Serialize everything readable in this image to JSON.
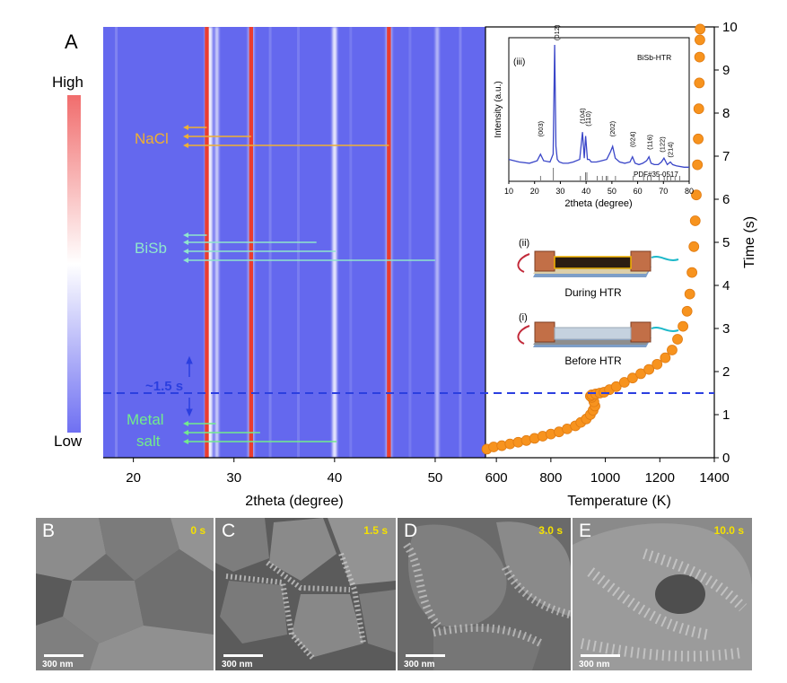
{
  "panel_a": {
    "letter": "A",
    "colorbar": {
      "high_label": "High",
      "low_label": "Low"
    },
    "heatmap": {
      "xlabel": "2theta (degree)",
      "xticks": [
        "20",
        "30",
        "40",
        "50"
      ],
      "xlim": [
        17,
        55
      ],
      "phases": [
        {
          "label": "NaCl",
          "color": "#f0b030"
        },
        {
          "label": "BiSb",
          "color": "#8fe6cc"
        },
        {
          "label": "Metal",
          "color": "#72ec8c"
        },
        {
          "label": "salt",
          "color": "#72ec8c"
        }
      ],
      "threshold_label": "~1.5 s",
      "threshold_color": "#2b3fe0"
    },
    "temperature_plot": {
      "xlabel": "Temperature (K)",
      "ylabel": "Time (s)",
      "xticks": [
        "600",
        "800",
        "1000",
        "1200",
        "1400"
      ],
      "yticks": [
        "0",
        "1",
        "2",
        "3",
        "4",
        "5",
        "6",
        "7",
        "8",
        "9",
        "10"
      ],
      "marker_color": "#f7931e"
    },
    "schematics": [
      {
        "roman": "(ii)",
        "caption": "During HTR"
      },
      {
        "roman": "(i)",
        "caption": "Before HTR"
      }
    ],
    "inset": {
      "roman": "(iii)",
      "sample_label": "BiSb-HTR",
      "reference_label": "PDF#35-0517",
      "xlabel": "2theta (degree)",
      "ylabel": "Intensity (a.u.)",
      "xticks": [
        "10",
        "20",
        "30",
        "40",
        "50",
        "60",
        "70",
        "80"
      ],
      "peak_labels": [
        "(003)",
        "(012)",
        "(104)",
        "(110)",
        "(202)",
        "(024)",
        "(116)",
        "(122)",
        "(214)"
      ],
      "line_color": "#3a46c8"
    }
  },
  "chart_data": [
    {
      "type": "heatmap",
      "title": "",
      "xlabel": "2theta (degree)",
      "ylabel": "Time (s)",
      "xlim": [
        17,
        55
      ],
      "ylim": [
        0,
        10
      ],
      "colorbar": [
        "Low",
        "High"
      ],
      "persistent_peaks_2theta": [
        27.3,
        31.7,
        45.4
      ],
      "phase_arrows": [
        {
          "phase": "NaCl",
          "peaks_2theta": [
            27.3,
            31.7,
            45.4
          ]
        },
        {
          "phase": "BiSb",
          "peaks_2theta": [
            27.3,
            38.2,
            40.1,
            50
          ]
        },
        {
          "phase": "Metal salt",
          "peaks_2theta": [
            28.2,
            32.6,
            40.2
          ]
        }
      ],
      "annotation": {
        "text": "~1.5 s",
        "y": 1.5
      }
    },
    {
      "type": "scatter",
      "title": "",
      "xlabel": "Temperature (K)",
      "ylabel": "Time (s)",
      "xlim": [
        560,
        1400
      ],
      "ylim": [
        0,
        10
      ],
      "x": [
        565,
        590,
        620,
        650,
        680,
        710,
        740,
        770,
        800,
        830,
        860,
        890,
        910,
        930,
        945,
        955,
        962,
        958,
        950,
        945,
        950,
        965,
        980,
        995,
        1015,
        1040,
        1070,
        1100,
        1130,
        1160,
        1190,
        1220,
        1245,
        1265,
        1285,
        1300,
        1310,
        1318,
        1325,
        1330,
        1334,
        1338,
        1341,
        1343,
        1345,
        1346,
        1347,
        1348
      ],
      "y": [
        0.2,
        0.25,
        0.28,
        0.32,
        0.36,
        0.4,
        0.45,
        0.5,
        0.55,
        0.6,
        0.67,
        0.74,
        0.82,
        0.9,
        1.0,
        1.1,
        1.2,
        1.3,
        1.4,
        1.43,
        1.46,
        1.48,
        1.5,
        1.52,
        1.58,
        1.65,
        1.75,
        1.85,
        1.95,
        2.05,
        2.17,
        2.32,
        2.5,
        2.75,
        3.05,
        3.4,
        3.8,
        4.3,
        4.9,
        5.5,
        6.1,
        6.8,
        7.4,
        8.1,
        8.7,
        9.3,
        9.7,
        9.95
      ]
    },
    {
      "type": "line",
      "title": "",
      "xlabel": "2theta (degree)",
      "ylabel": "Intensity (a.u.)",
      "xlim": [
        10,
        80
      ],
      "series": [
        {
          "x": [
            10,
            14,
            18,
            21,
            22.3,
            23.5,
            26,
            27.2,
            27.8,
            28.3,
            28.8,
            29.6,
            31,
            33,
            35,
            37.5,
            38.6,
            39.3,
            39.8,
            40.5,
            41.2,
            42,
            44,
            46,
            48,
            49.5,
            50.3,
            51.3,
            53,
            55,
            57,
            58,
            59,
            60.5,
            62,
            63.5,
            64.4,
            65.2,
            66.5,
            68,
            69.2,
            70.2,
            71.5,
            72.7,
            73.6,
            75,
            78,
            80
          ],
          "values": [
            0.12,
            0.1,
            0.09,
            0.11,
            0.16,
            0.11,
            0.1,
            0.16,
            1.0,
            0.22,
            0.12,
            0.1,
            0.09,
            0.09,
            0.1,
            0.12,
            0.33,
            0.13,
            0.3,
            0.12,
            0.12,
            0.1,
            0.1,
            0.11,
            0.12,
            0.18,
            0.22,
            0.13,
            0.1,
            0.09,
            0.1,
            0.14,
            0.09,
            0.08,
            0.09,
            0.11,
            0.14,
            0.09,
            0.08,
            0.08,
            0.1,
            0.13,
            0.08,
            0.1,
            0.08,
            0.07,
            0.06,
            0.06
          ]
        }
      ],
      "reference_sticks_2theta": [
        22.3,
        27.3,
        37.8,
        39.8,
        40.3,
        44.3,
        46.3,
        47.8,
        48.3,
        51.4,
        58.3,
        62.3,
        63.8,
        65.2,
        68.3,
        70.3,
        71.5,
        72.8,
        74.5,
        76.3
      ]
    }
  ],
  "sem_panels": [
    {
      "letter": "B",
      "time": "0 s",
      "scale": "300 nm"
    },
    {
      "letter": "C",
      "time": "1.5 s",
      "scale": "300 nm"
    },
    {
      "letter": "D",
      "time": "3.0 s",
      "scale": "300 nm"
    },
    {
      "letter": "E",
      "time": "10.0 s",
      "scale": "300 nm"
    }
  ]
}
